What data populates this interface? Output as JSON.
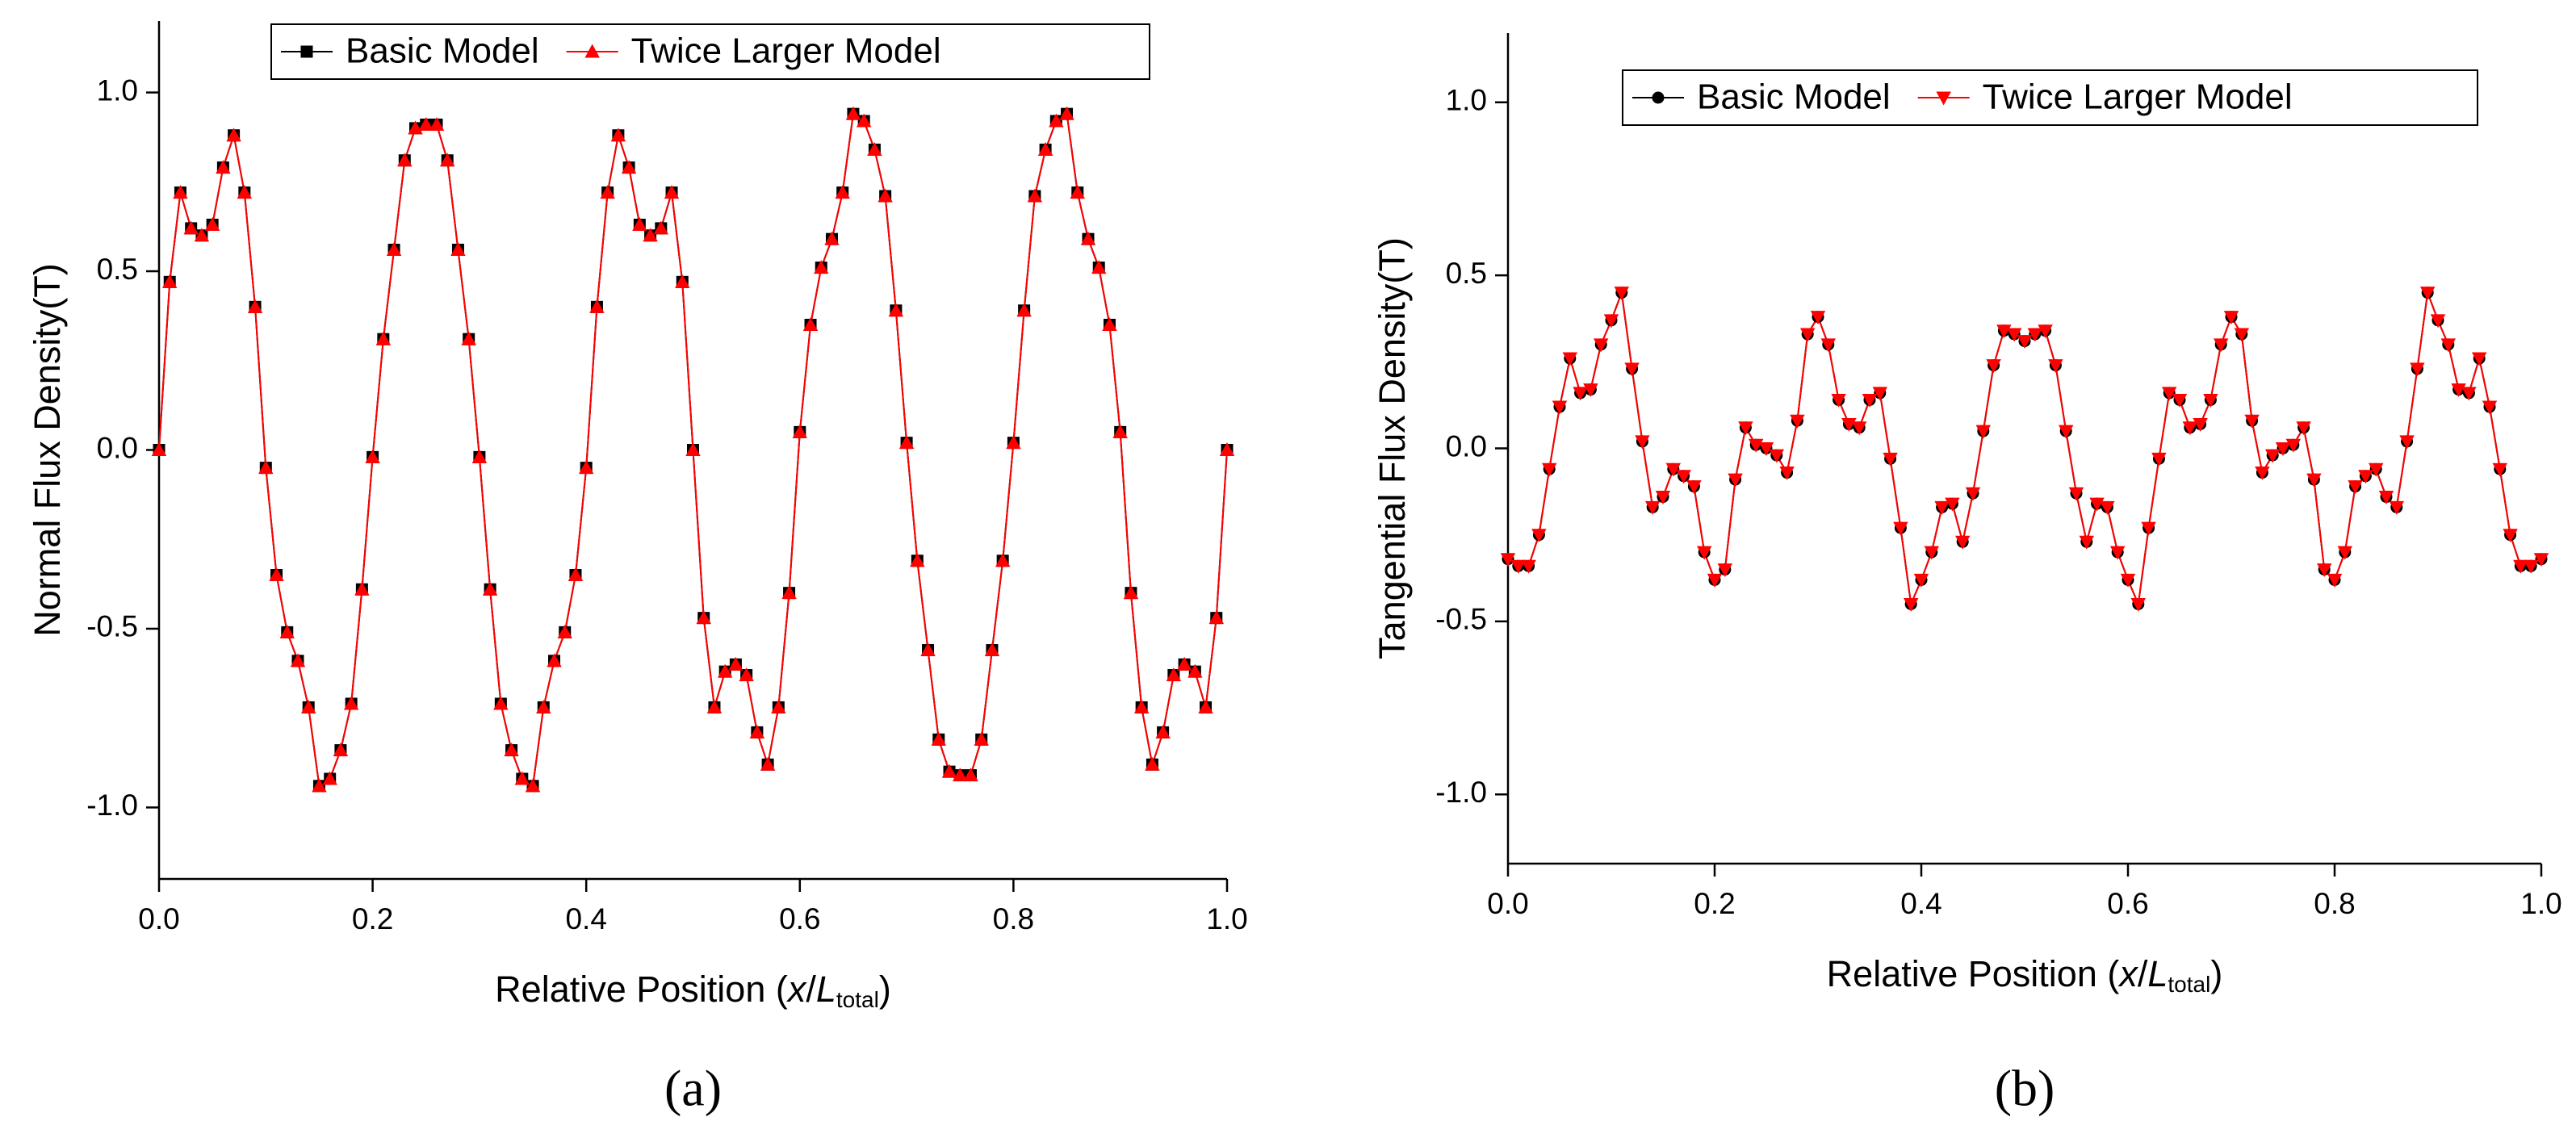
{
  "chart_data": [
    {
      "type": "line",
      "y_label": "Normal Flux Density(T)",
      "x_label": [
        "Relative Position (",
        "x",
        "/",
        "L",
        "total",
        ")"
      ],
      "caption": "(a)",
      "legend": "top",
      "x": [
        0,
        0.01,
        0.02,
        0.03,
        0.04,
        0.05,
        0.06,
        0.07,
        0.08,
        0.09,
        0.1,
        0.11,
        0.12,
        0.13,
        0.14,
        0.15,
        0.16,
        0.17,
        0.18,
        0.19,
        0.2,
        0.21,
        0.22,
        0.23,
        0.24,
        0.25,
        0.26,
        0.27,
        0.28,
        0.29,
        0.3,
        0.31,
        0.32,
        0.33,
        0.34,
        0.35,
        0.36,
        0.37,
        0.38,
        0.39,
        0.4,
        0.41,
        0.42,
        0.43,
        0.44,
        0.45,
        0.46,
        0.47,
        0.48,
        0.49,
        0.5,
        0.51,
        0.52,
        0.53,
        0.54,
        0.55,
        0.56,
        0.57,
        0.58,
        0.59,
        0.6,
        0.61,
        0.62,
        0.63,
        0.64,
        0.65,
        0.66,
        0.67,
        0.68,
        0.69,
        0.7,
        0.71,
        0.72,
        0.73,
        0.74,
        0.75,
        0.76,
        0.77,
        0.78,
        0.79,
        0.8,
        0.81,
        0.82,
        0.83,
        0.84,
        0.85,
        0.86,
        0.87,
        0.88,
        0.89,
        0.9,
        0.91,
        0.92,
        0.93,
        0.94,
        0.95,
        0.96,
        0.97,
        0.98,
        0.99,
        1
      ],
      "series": [
        {
          "name": "Basic Model",
          "color": "#000000",
          "marker": "square",
          "values": [
            0,
            0.47,
            0.72,
            0.62,
            0.6,
            0.63,
            0.79,
            0.88,
            0.72,
            0.4,
            -0.05,
            -0.35,
            -0.51,
            -0.59,
            -0.72,
            -0.94,
            -0.92,
            -0.84,
            -0.71,
            -0.39,
            -0.02,
            0.31,
            0.56,
            0.81,
            0.9,
            0.91,
            0.91,
            0.81,
            0.56,
            0.31,
            -0.02,
            -0.39,
            -0.71,
            -0.84,
            -0.92,
            -0.94,
            -0.72,
            -0.59,
            -0.51,
            -0.35,
            -0.05,
            0.4,
            0.72,
            0.88,
            0.79,
            0.63,
            0.6,
            0.62,
            0.72,
            0.47,
            0,
            -0.47,
            -0.72,
            -0.62,
            -0.6,
            -0.63,
            -0.79,
            -0.88,
            -0.72,
            -0.4,
            0.05,
            0.35,
            0.51,
            0.59,
            0.72,
            0.94,
            0.92,
            0.84,
            0.71,
            0.39,
            0.02,
            -0.31,
            -0.56,
            -0.81,
            -0.9,
            -0.91,
            -0.91,
            -0.81,
            -0.56,
            -0.31,
            0.02,
            0.39,
            0.71,
            0.84,
            0.92,
            0.94,
            0.72,
            0.59,
            0.51,
            0.35,
            0.05,
            -0.4,
            -0.72,
            -0.88,
            -0.79,
            -0.63,
            -0.6,
            -0.62,
            -0.72,
            -0.47,
            0
          ]
        },
        {
          "name": "Twice Larger Model",
          "color": "#ff0000",
          "marker": "triangle",
          "values": [
            0,
            0.47,
            0.72,
            0.62,
            0.6,
            0.63,
            0.79,
            0.88,
            0.72,
            0.4,
            -0.05,
            -0.35,
            -0.51,
            -0.59,
            -0.72,
            -0.94,
            -0.92,
            -0.84,
            -0.71,
            -0.39,
            -0.02,
            0.31,
            0.56,
            0.81,
            0.9,
            0.91,
            0.91,
            0.81,
            0.56,
            0.31,
            -0.02,
            -0.39,
            -0.71,
            -0.84,
            -0.92,
            -0.94,
            -0.72,
            -0.59,
            -0.51,
            -0.35,
            -0.05,
            0.4,
            0.72,
            0.88,
            0.79,
            0.63,
            0.6,
            0.62,
            0.72,
            0.47,
            0,
            -0.47,
            -0.72,
            -0.62,
            -0.6,
            -0.63,
            -0.79,
            -0.88,
            -0.72,
            -0.4,
            0.05,
            0.35,
            0.51,
            0.59,
            0.72,
            0.94,
            0.92,
            0.84,
            0.71,
            0.39,
            0.02,
            -0.31,
            -0.56,
            -0.81,
            -0.9,
            -0.91,
            -0.91,
            -0.81,
            -0.56,
            -0.31,
            0.02,
            0.39,
            0.71,
            0.84,
            0.92,
            0.94,
            0.72,
            0.59,
            0.51,
            0.35,
            0.05,
            -0.4,
            -0.72,
            -0.88,
            -0.79,
            -0.63,
            -0.6,
            -0.62,
            -0.72,
            -0.47,
            0
          ]
        }
      ],
      "xlim": [
        0,
        1
      ],
      "ylim": [
        -1.2,
        1.2
      ],
      "xticks": [
        {
          "value": 0,
          "label": "0.0"
        },
        0.2,
        0.4,
        0.6,
        0.8,
        {
          "value": 1,
          "label": "1.0"
        }
      ],
      "yticks": [
        {
          "value": -1,
          "label": "-1.0"
        },
        -0.5,
        {
          "value": 0,
          "label": "0.0"
        },
        0.5,
        {
          "value": 1,
          "label": "1.0"
        }
      ]
    },
    {
      "type": "line",
      "y_label": "Tangential Flux Density(T)",
      "x_label": [
        "Relative Position (",
        "x",
        "/",
        "L",
        "total",
        ")"
      ],
      "caption": "(b)",
      "legend": "top",
      "x": [
        0,
        0.01,
        0.02,
        0.03,
        0.04,
        0.05,
        0.06,
        0.07,
        0.08,
        0.09,
        0.1,
        0.11,
        0.12,
        0.13,
        0.14,
        0.15,
        0.16,
        0.17,
        0.18,
        0.19,
        0.2,
        0.21,
        0.22,
        0.23,
        0.24,
        0.25,
        0.26,
        0.27,
        0.28,
        0.29,
        0.3,
        0.31,
        0.32,
        0.33,
        0.34,
        0.35,
        0.36,
        0.37,
        0.38,
        0.39,
        0.4,
        0.41,
        0.42,
        0.43,
        0.44,
        0.45,
        0.46,
        0.47,
        0.48,
        0.49,
        0.5,
        0.51,
        0.52,
        0.53,
        0.54,
        0.55,
        0.56,
        0.57,
        0.58,
        0.59,
        0.6,
        0.61,
        0.62,
        0.63,
        0.64,
        0.65,
        0.66,
        0.67,
        0.68,
        0.69,
        0.7,
        0.71,
        0.72,
        0.73,
        0.74,
        0.75,
        0.76,
        0.77,
        0.78,
        0.79,
        0.8,
        0.81,
        0.82,
        0.83,
        0.84,
        0.85,
        0.86,
        0.87,
        0.88,
        0.89,
        0.9,
        0.91,
        0.92,
        0.93,
        0.94,
        0.95,
        0.96,
        0.97,
        0.98,
        0.99,
        1
      ],
      "series": [
        {
          "name": "Basic Model",
          "color": "#000000",
          "marker": "circle",
          "values": [
            -0.32,
            -0.34,
            -0.34,
            -0.25,
            -0.06,
            0.12,
            0.26,
            0.16,
            0.17,
            0.3,
            0.37,
            0.45,
            0.23,
            0.02,
            -0.17,
            -0.14,
            -0.06,
            -0.08,
            -0.11,
            -0.3,
            -0.38,
            -0.35,
            -0.09,
            0.06,
            0.01,
            0,
            -0.02,
            -0.07,
            0.08,
            0.33,
            0.38,
            0.3,
            0.14,
            0.07,
            0.06,
            0.14,
            0.16,
            -0.03,
            -0.23,
            -0.45,
            -0.38,
            -0.3,
            -0.17,
            -0.16,
            -0.27,
            -0.13,
            0.05,
            0.24,
            0.34,
            0.33,
            0.31,
            0.33,
            0.34,
            0.24,
            0.05,
            -0.13,
            -0.27,
            -0.16,
            -0.17,
            -0.3,
            -0.38,
            -0.45,
            -0.23,
            -0.03,
            0.16,
            0.14,
            0.06,
            0.07,
            0.14,
            0.3,
            0.38,
            0.33,
            0.08,
            -0.07,
            -0.02,
            0,
            0.01,
            0.06,
            -0.09,
            -0.35,
            -0.38,
            -0.3,
            -0.11,
            -0.08,
            -0.06,
            -0.14,
            -0.17,
            0.02,
            0.23,
            0.45,
            0.37,
            0.3,
            0.17,
            0.16,
            0.26,
            0.12,
            -0.06,
            -0.25,
            -0.34,
            -0.34,
            -0.32
          ]
        },
        {
          "name": "Twice Larger Model",
          "color": "#ff0000",
          "marker": "triangle-down",
          "values": [
            -0.32,
            -0.34,
            -0.34,
            -0.25,
            -0.06,
            0.12,
            0.26,
            0.16,
            0.17,
            0.3,
            0.37,
            0.45,
            0.23,
            0.02,
            -0.17,
            -0.14,
            -0.06,
            -0.08,
            -0.11,
            -0.3,
            -0.38,
            -0.35,
            -0.09,
            0.06,
            0.01,
            0,
            -0.02,
            -0.07,
            0.08,
            0.33,
            0.38,
            0.3,
            0.14,
            0.07,
            0.06,
            0.14,
            0.16,
            -0.03,
            -0.23,
            -0.45,
            -0.38,
            -0.3,
            -0.17,
            -0.16,
            -0.27,
            -0.13,
            0.05,
            0.24,
            0.34,
            0.33,
            0.31,
            0.33,
            0.34,
            0.24,
            0.05,
            -0.13,
            -0.27,
            -0.16,
            -0.17,
            -0.3,
            -0.38,
            -0.45,
            -0.23,
            -0.03,
            0.16,
            0.14,
            0.06,
            0.07,
            0.14,
            0.3,
            0.38,
            0.33,
            0.08,
            -0.07,
            -0.02,
            0,
            0.01,
            0.06,
            -0.09,
            -0.35,
            -0.38,
            -0.3,
            -0.11,
            -0.08,
            -0.06,
            -0.14,
            -0.17,
            0.02,
            0.23,
            0.45,
            0.37,
            0.3,
            0.17,
            0.16,
            0.26,
            0.12,
            -0.06,
            -0.25,
            -0.34,
            -0.34,
            -0.32
          ]
        }
      ],
      "xlim": [
        0,
        1
      ],
      "ylim": [
        -1.2,
        1.2
      ],
      "xticks": [
        {
          "value": 0,
          "label": "0.0"
        },
        0.2,
        0.4,
        0.6,
        0.8,
        {
          "value": 1,
          "label": "1.0"
        }
      ],
      "yticks": [
        {
          "value": -1,
          "label": "-1.0"
        },
        -0.5,
        {
          "value": 0,
          "label": "0.0"
        },
        0.5,
        {
          "value": 1,
          "label": "1.0"
        }
      ]
    }
  ]
}
